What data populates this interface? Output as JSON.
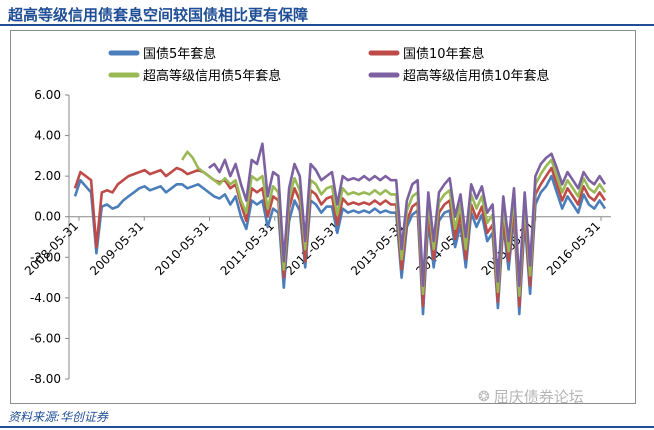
{
  "header": {
    "title": "超高等级信用债套息空间较国债相比更有保障"
  },
  "footer": {
    "source": "资料来源:华创证券",
    "watermark": "屈庆债券论坛"
  },
  "chart_data": {
    "type": "line",
    "title": "超高等级信用债套息空间较国债相比更有保障",
    "xlabel": "",
    "ylabel": "",
    "ylim": [
      -8,
      6
    ],
    "yticks": [
      6,
      4,
      2,
      0,
      -2,
      -4,
      -6,
      -8
    ],
    "ytick_labels": [
      "6.00",
      "4.00",
      "2.00",
      "0.00",
      "-2.00",
      "-4.00",
      "-6.00",
      "-8.00"
    ],
    "xlim": [
      "2008-05-31",
      "2016-08-31"
    ],
    "xtick_labels": [
      "2008-05-31",
      "2009-05-31",
      "2010-05-31",
      "2011-05-31",
      "2012-05-31",
      "2013-05-31",
      "2014-05-31",
      "2015-05-31",
      "2016-05-31"
    ],
    "legend_position": "top",
    "x": [
      "2008-05",
      "2008-06",
      "2008-07",
      "2008-08",
      "2008-09",
      "2008-10",
      "2008-11",
      "2008-12",
      "2009-01",
      "2009-02",
      "2009-03",
      "2009-04",
      "2009-05",
      "2009-06",
      "2009-07",
      "2009-08",
      "2009-09",
      "2009-10",
      "2009-11",
      "2009-12",
      "2010-01",
      "2010-02",
      "2010-03",
      "2010-04",
      "2010-05",
      "2010-06",
      "2010-07",
      "2010-08",
      "2010-09",
      "2010-10",
      "2010-11",
      "2010-12",
      "2011-01",
      "2011-02",
      "2011-03",
      "2011-04",
      "2011-05",
      "2011-06",
      "2011-07",
      "2011-08",
      "2011-09",
      "2011-10",
      "2011-11",
      "2011-12",
      "2012-01",
      "2012-02",
      "2012-03",
      "2012-04",
      "2012-05",
      "2012-06",
      "2012-07",
      "2012-08",
      "2012-09",
      "2012-10",
      "2012-11",
      "2012-12",
      "2013-01",
      "2013-02",
      "2013-03",
      "2013-04",
      "2013-05",
      "2013-06",
      "2013-07",
      "2013-08",
      "2013-09",
      "2013-10",
      "2013-11",
      "2013-12",
      "2014-01",
      "2014-02",
      "2014-03",
      "2014-04",
      "2014-05",
      "2014-06",
      "2014-07",
      "2014-08",
      "2014-09",
      "2014-10",
      "2014-11",
      "2014-12",
      "2015-01",
      "2015-02",
      "2015-03",
      "2015-04",
      "2015-05",
      "2015-06",
      "2015-07",
      "2015-08",
      "2015-09",
      "2015-10",
      "2015-11",
      "2015-12",
      "2016-01",
      "2016-02",
      "2016-03",
      "2016-04",
      "2016-05",
      "2016-06",
      "2016-07",
      "2016-08"
    ],
    "series": [
      {
        "name": "国债5年套息",
        "color": "#4a7ebb",
        "values": [
          1.0,
          1.8,
          1.5,
          1.2,
          -1.8,
          0.5,
          0.6,
          0.4,
          0.5,
          0.8,
          1.0,
          1.2,
          1.4,
          1.5,
          1.3,
          1.4,
          1.5,
          1.2,
          1.4,
          1.6,
          1.6,
          1.4,
          1.5,
          1.6,
          1.4,
          1.2,
          1.0,
          0.9,
          1.1,
          0.6,
          1.0,
          0.0,
          -0.6,
          0.8,
          0.6,
          0.8,
          -0.5,
          0.4,
          0.2,
          -3.5,
          -0.2,
          0.8,
          0.3,
          -2.5,
          0.8,
          0.6,
          0.2,
          0.5,
          0.5,
          -0.8,
          0.4,
          0.2,
          0.3,
          0.2,
          0.3,
          0.2,
          0.4,
          0.2,
          0.3,
          0.2,
          0.2,
          -3.0,
          -0.5,
          0.1,
          0.3,
          -4.8,
          -0.2,
          -2.5,
          -0.2,
          0.2,
          0.3,
          -1.5,
          -0.4,
          -2.5,
          0.2,
          -0.5,
          0.1,
          -1.2,
          -0.8,
          -4.5,
          -0.4,
          -2.6,
          0.1,
          -4.8,
          -0.2,
          -3.8,
          0.6,
          1.2,
          1.5,
          2.0,
          1.2,
          0.4,
          1.0,
          0.6,
          0.2,
          1.1,
          0.6,
          0.4,
          0.8,
          0.4
        ]
      },
      {
        "name": "国债10年套息",
        "color": "#be4b48",
        "values": [
          1.4,
          2.2,
          2.0,
          1.8,
          -1.5,
          1.2,
          1.3,
          1.2,
          1.6,
          1.8,
          2.0,
          2.1,
          2.2,
          2.3,
          2.1,
          2.2,
          2.3,
          2.0,
          2.2,
          2.4,
          2.3,
          2.1,
          2.2,
          2.3,
          2.2,
          2.0,
          1.8,
          1.7,
          1.8,
          1.4,
          1.6,
          0.6,
          -0.2,
          1.4,
          1.2,
          1.4,
          0.0,
          1.0,
          0.8,
          -3.0,
          0.4,
          1.4,
          0.8,
          -2.2,
          1.3,
          1.1,
          0.6,
          0.9,
          1.0,
          -0.4,
          0.9,
          0.6,
          0.7,
          0.6,
          0.7,
          0.6,
          0.8,
          0.6,
          0.8,
          0.6,
          0.6,
          -2.6,
          -0.2,
          0.5,
          0.7,
          -4.4,
          0.2,
          -2.1,
          0.2,
          0.6,
          0.8,
          -1.1,
          0.1,
          -2.1,
          0.6,
          -0.1,
          0.5,
          -0.8,
          -0.4,
          -4.2,
          0.0,
          -2.2,
          0.5,
          -4.4,
          0.2,
          -3.4,
          1.1,
          1.6,
          2.0,
          2.4,
          1.6,
          0.8,
          1.4,
          1.0,
          0.6,
          1.5,
          1.0,
          0.8,
          1.2,
          0.8
        ]
      },
      {
        "name": "超高等级信用债5年套息",
        "color": "#98b954",
        "values": [
          null,
          null,
          null,
          null,
          null,
          null,
          null,
          null,
          null,
          null,
          null,
          null,
          null,
          null,
          null,
          null,
          null,
          null,
          null,
          null,
          2.8,
          3.2,
          2.9,
          2.4,
          2.2,
          2.0,
          1.8,
          1.6,
          1.9,
          1.6,
          1.8,
          0.8,
          0.2,
          2.0,
          1.8,
          2.0,
          0.4,
          1.5,
          1.2,
          -2.6,
          0.9,
          1.9,
          1.3,
          -1.6,
          1.8,
          1.6,
          1.1,
          1.4,
          1.5,
          0.1,
          1.4,
          1.1,
          1.2,
          1.1,
          1.2,
          1.1,
          1.3,
          1.1,
          1.3,
          1.1,
          1.1,
          -2.1,
          0.3,
          1.0,
          1.2,
          -3.8,
          0.7,
          -1.6,
          0.7,
          1.1,
          1.3,
          -0.6,
          0.6,
          -1.6,
          1.1,
          0.4,
          1.0,
          -0.3,
          0.1,
          -3.7,
          0.5,
          -1.7,
          1.0,
          -3.9,
          0.7,
          -2.9,
          1.6,
          2.1,
          2.5,
          2.8,
          2.0,
          1.2,
          1.8,
          1.4,
          1.0,
          1.9,
          1.4,
          1.2,
          1.6,
          1.2
        ]
      },
      {
        "name": "超高等级信用债10年套息",
        "color": "#7d60a0",
        "values": [
          null,
          null,
          null,
          null,
          null,
          null,
          null,
          null,
          null,
          null,
          null,
          null,
          null,
          null,
          null,
          null,
          null,
          null,
          null,
          null,
          null,
          null,
          null,
          null,
          null,
          2.4,
          2.6,
          2.2,
          2.8,
          2.0,
          2.6,
          1.6,
          0.8,
          2.8,
          2.6,
          3.6,
          1.0,
          2.2,
          2.0,
          -2.2,
          1.4,
          2.6,
          2.0,
          -1.2,
          2.6,
          2.3,
          1.8,
          2.0,
          2.2,
          0.6,
          2.0,
          1.8,
          1.9,
          1.8,
          2.0,
          1.8,
          2.0,
          1.8,
          2.0,
          1.8,
          1.8,
          -1.6,
          0.8,
          1.6,
          1.8,
          -3.4,
          1.2,
          -1.2,
          1.2,
          1.6,
          1.9,
          0.0,
          1.1,
          -1.0,
          1.6,
          0.9,
          1.5,
          0.2,
          0.6,
          -3.2,
          1.0,
          -1.2,
          1.4,
          -3.4,
          1.2,
          -2.4,
          2.0,
          2.6,
          2.9,
          3.1,
          2.4,
          1.6,
          2.2,
          1.8,
          1.4,
          2.2,
          1.8,
          1.6,
          2.0,
          1.6
        ]
      }
    ]
  }
}
